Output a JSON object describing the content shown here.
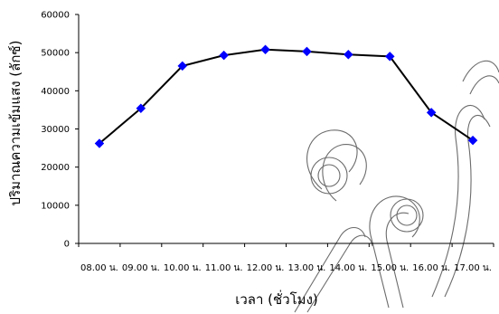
{
  "chart_data": {
    "type": "line",
    "title": "",
    "xlabel": "เวลา (ชั่วโมง)",
    "ylabel": "ปริมาณความเข้มแสง (ลักซ์)",
    "categories": [
      "08.00 น.",
      "09.00 น.",
      "10.00 น.",
      "11.00 น.",
      "12.00 น.",
      "13.00 น.",
      "14.00 น.",
      "15.00 น.",
      "16.00 น.",
      "17.00 น."
    ],
    "y_ticks": [
      "0",
      "10000",
      "20000",
      "30000",
      "40000",
      "50000",
      "60000"
    ],
    "ylim": [
      0,
      60000
    ],
    "series": [
      {
        "values": [
          26200,
          35400,
          46500,
          49300,
          50800,
          50300,
          49500,
          49000,
          34300,
          27000
        ],
        "marker": "diamond",
        "marker_color": "#0000ff",
        "line_color": "#000000"
      }
    ],
    "grid": false,
    "legend": "none",
    "watermark": "decorative line-art watermark"
  }
}
